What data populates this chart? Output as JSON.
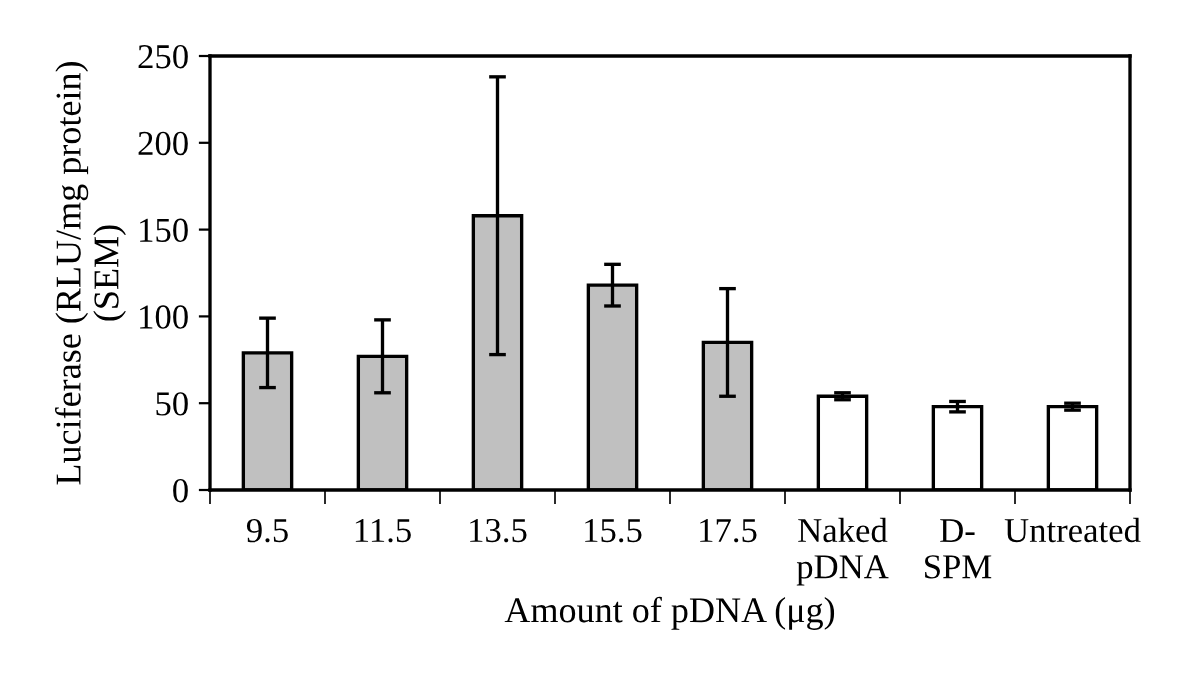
{
  "chart_data": {
    "type": "bar",
    "categories": [
      "9.5",
      "11.5",
      "13.5",
      "15.5",
      "17.5",
      "Naked\npDNA",
      "D-\nSPM",
      "Untreated"
    ],
    "values": [
      79,
      77,
      158,
      118,
      85,
      54,
      48,
      48
    ],
    "errors": [
      20,
      21,
      80,
      12,
      31,
      2,
      3,
      2
    ],
    "colors": [
      "#c0c0c0",
      "#c0c0c0",
      "#c0c0c0",
      "#c0c0c0",
      "#c0c0c0",
      "#ffffff",
      "#ffffff",
      "#ffffff"
    ],
    "xlabel": "Amount of pDNA (μg)",
    "ylabel": "Luciferase (RLU/mg protein)\n(SEM)",
    "ylim": [
      0,
      250
    ],
    "yticks": [
      0,
      50,
      100,
      150,
      200,
      250
    ],
    "grid": false,
    "legend": false
  }
}
